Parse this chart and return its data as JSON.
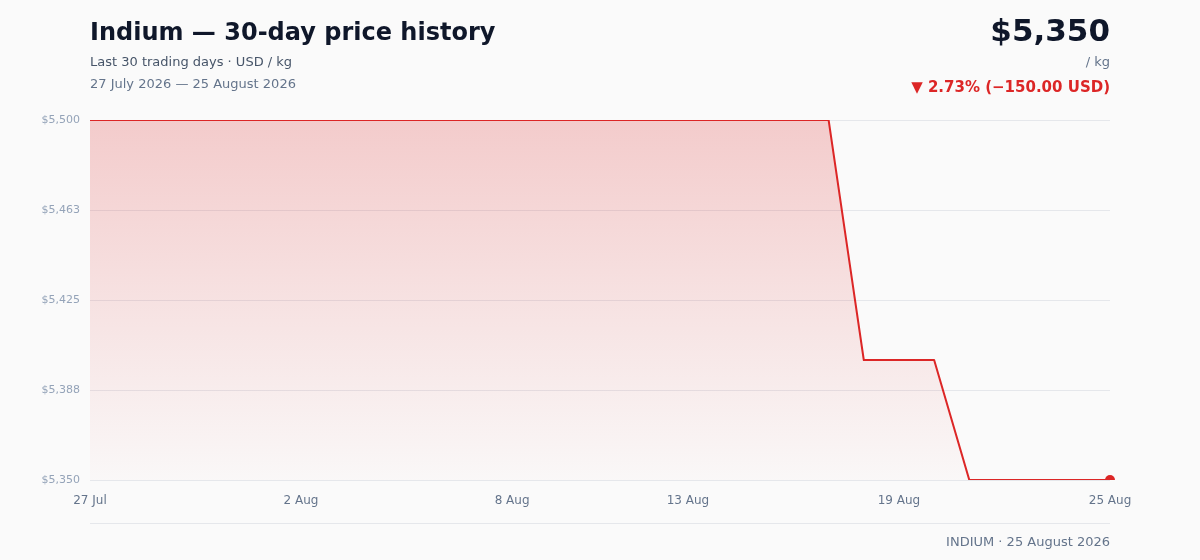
{
  "chart_data": {
    "type": "area",
    "title": "Indium — 30-day price history",
    "subtitle": "Last 30 trading days · USD / kg",
    "annotations": [
      "27 July 2026 — 25 August 2026",
      "$5,350",
      "/ kg",
      "▼ 2.73% (−150.00 USD)",
      "INDIUM · 25 August 2026"
    ],
    "categories": [
      "27 Jul",
      null,
      null,
      null,
      null,
      null,
      "2 Aug",
      null,
      null,
      null,
      null,
      null,
      "8 Aug",
      null,
      null,
      null,
      null,
      "13 Aug",
      null,
      null,
      null,
      null,
      null,
      "19 Aug",
      null,
      null,
      null,
      null,
      null,
      "25 Aug"
    ],
    "series": [
      {
        "color": "#dc2626",
        "values": [
          5500,
          5500,
          5500,
          5500,
          5500,
          5500,
          5500,
          5500,
          5500,
          5500,
          5500,
          5500,
          5500,
          5500,
          5500,
          5500,
          5500,
          5500,
          5500,
          5500,
          5500,
          5500,
          5400,
          5400,
          5400,
          5350,
          5350,
          5350,
          5350,
          5350
        ]
      }
    ],
    "ylim": [
      5350,
      5500
    ],
    "yticks": [
      {
        "value": 5350,
        "label": "$5,350"
      },
      {
        "value": 5387.5,
        "label": "$5,388"
      },
      {
        "value": 5425,
        "label": "$5,425"
      },
      {
        "value": 5462.5,
        "label": "$5,463"
      },
      {
        "value": 5500,
        "label": "$5,500"
      }
    ],
    "grid": "y",
    "legend": false
  }
}
